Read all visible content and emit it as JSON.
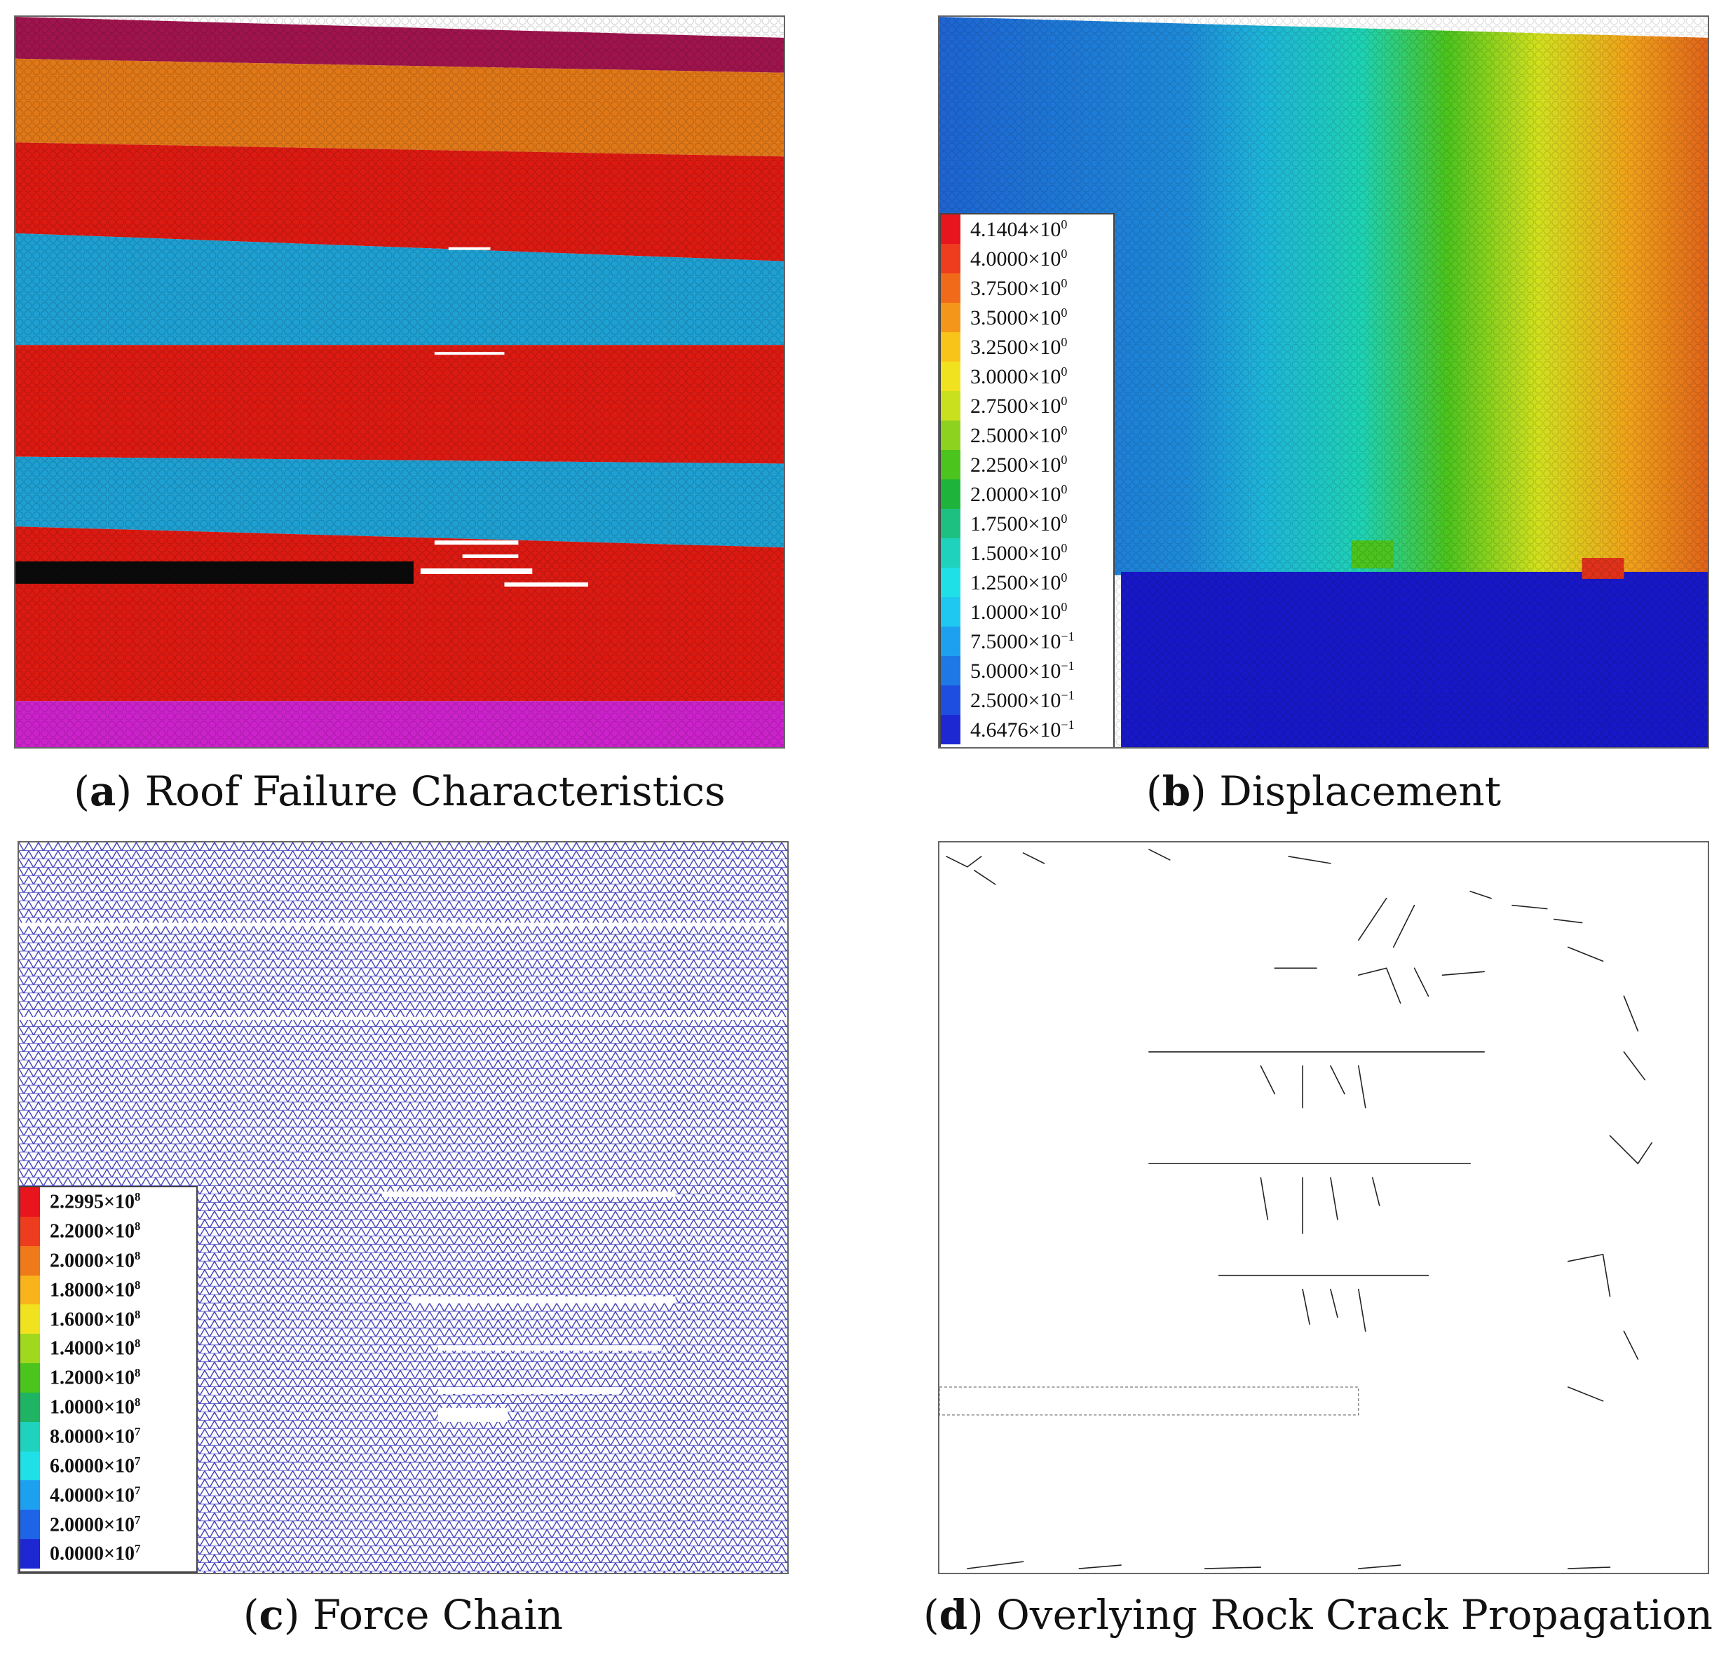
{
  "panels": {
    "a": {
      "caption_letter": "a",
      "caption_text": "Roof Failure Characteristics",
      "colors": {
        "top": "#a0144e",
        "orange": "#e07818",
        "red": "#dc1a12",
        "cyan": "#1ea0d2",
        "black": "#0a0a0a",
        "magenta": "#cc22cc"
      }
    },
    "b": {
      "caption_letter": "b",
      "caption_text": "Displacement",
      "legend": [
        {
          "mantissa": "4.1404×10",
          "exp": "0",
          "color": "#e8141e"
        },
        {
          "mantissa": "4.0000×10",
          "exp": "0",
          "color": "#ee3c1e"
        },
        {
          "mantissa": "3.7500×10",
          "exp": "0",
          "color": "#f06a1a"
        },
        {
          "mantissa": "3.5000×10",
          "exp": "0",
          "color": "#f4961a"
        },
        {
          "mantissa": "3.2500×10",
          "exp": "0",
          "color": "#f8c41a"
        },
        {
          "mantissa": "3.0000×10",
          "exp": "0",
          "color": "#f0e21e"
        },
        {
          "mantissa": "2.7500×10",
          "exp": "0",
          "color": "#c8e01e"
        },
        {
          "mantissa": "2.5000×10",
          "exp": "0",
          "color": "#8cd21e"
        },
        {
          "mantissa": "2.2500×10",
          "exp": "0",
          "color": "#4cc41e"
        },
        {
          "mantissa": "2.0000×10",
          "exp": "0",
          "color": "#1eb43c"
        },
        {
          "mantissa": "1.7500×10",
          "exp": "0",
          "color": "#1ec082"
        },
        {
          "mantissa": "1.5000×10",
          "exp": "0",
          "color": "#1ed2be"
        },
        {
          "mantissa": "1.2500×10",
          "exp": "0",
          "color": "#1ee0e6"
        },
        {
          "mantissa": "1.0000×10",
          "exp": "0",
          "color": "#1ec8f0"
        },
        {
          "mantissa": "7.5000×10",
          "exp": "−1",
          "color": "#1ea0f0"
        },
        {
          "mantissa": "5.0000×10",
          "exp": "−1",
          "color": "#1e78e6"
        },
        {
          "mantissa": "2.5000×10",
          "exp": "−1",
          "color": "#1e4ee0"
        },
        {
          "mantissa": "4.6476×10",
          "exp": "−1",
          "color": "#1e28d2"
        }
      ]
    },
    "c": {
      "caption_letter": "c",
      "caption_text": "Force Chain",
      "legend": [
        {
          "mantissa": "2.2995×10",
          "exp": "8",
          "color": "#e8141e"
        },
        {
          "mantissa": "2.2000×10",
          "exp": "8",
          "color": "#ee3c1e"
        },
        {
          "mantissa": "2.0000×10",
          "exp": "8",
          "color": "#f07a1a"
        },
        {
          "mantissa": "1.8000×10",
          "exp": "8",
          "color": "#f8b41a"
        },
        {
          "mantissa": "1.6000×10",
          "exp": "8",
          "color": "#f0e21e"
        },
        {
          "mantissa": "1.4000×10",
          "exp": "8",
          "color": "#a0d81e"
        },
        {
          "mantissa": "1.2000×10",
          "exp": "8",
          "color": "#4cc41e"
        },
        {
          "mantissa": "1.0000×10",
          "exp": "8",
          "color": "#1eb464"
        },
        {
          "mantissa": "8.0000×10",
          "exp": "7",
          "color": "#1ed2be"
        },
        {
          "mantissa": "6.0000×10",
          "exp": "7",
          "color": "#1ee0e6"
        },
        {
          "mantissa": "4.0000×10",
          "exp": "7",
          "color": "#1ea0f0"
        },
        {
          "mantissa": "2.0000×10",
          "exp": "7",
          "color": "#1e64e6"
        },
        {
          "mantissa": "0.0000×10",
          "exp": "7",
          "color": "#1e28d2"
        }
      ],
      "chain_color": "#3a3ab8"
    },
    "d": {
      "caption_letter": "d",
      "caption_text": "Overlying Rock Crack Propagation"
    }
  }
}
